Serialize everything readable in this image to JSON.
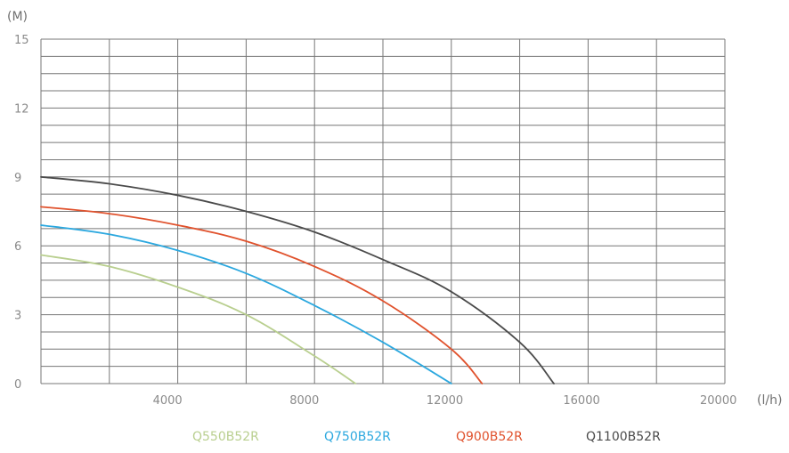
{
  "chart_data": {
    "type": "line",
    "title": "",
    "xlabel": "(l/h)",
    "ylabel": "(M)",
    "xlim": [
      0,
      20000
    ],
    "ylim": [
      0,
      15
    ],
    "x_ticks": [
      4000,
      8000,
      12000,
      16000,
      20000
    ],
    "x_tick_labels": [
      "4000",
      "8000",
      "12000",
      "16000",
      "20000"
    ],
    "y_ticks": [
      0,
      3,
      6,
      9,
      12,
      15
    ],
    "y_tick_labels": [
      "0",
      "3",
      "6",
      "9",
      "12",
      "15"
    ],
    "x_grid_step": 2000,
    "y_grid_step": 0.75,
    "grid": true,
    "legend_position": "bottom-center",
    "series": [
      {
        "name": "Q550B52R",
        "color": "#b9cf8f",
        "x": [
          0,
          2000,
          4000,
          6000,
          8000,
          9200
        ],
        "y": [
          5.6,
          5.1,
          4.2,
          3.0,
          1.2,
          0.0
        ]
      },
      {
        "name": "Q750B52R",
        "color": "#2ca8df",
        "x": [
          0,
          2000,
          4000,
          6000,
          8000,
          10000,
          12000
        ],
        "y": [
          6.9,
          6.5,
          5.8,
          4.8,
          3.4,
          1.8,
          0.0
        ]
      },
      {
        "name": "Q900B52R",
        "color": "#e0522d",
        "x": [
          0,
          2000,
          4000,
          6000,
          8000,
          10000,
          12000,
          12900
        ],
        "y": [
          7.7,
          7.4,
          6.9,
          6.2,
          5.1,
          3.6,
          1.5,
          0.0
        ]
      },
      {
        "name": "Q1100B52R",
        "color": "#4a4a4a",
        "x": [
          0,
          2000,
          4000,
          6000,
          8000,
          10000,
          12000,
          14000,
          15000
        ],
        "y": [
          9.0,
          8.7,
          8.2,
          7.5,
          6.6,
          5.4,
          4.0,
          1.8,
          0.0
        ]
      }
    ]
  }
}
